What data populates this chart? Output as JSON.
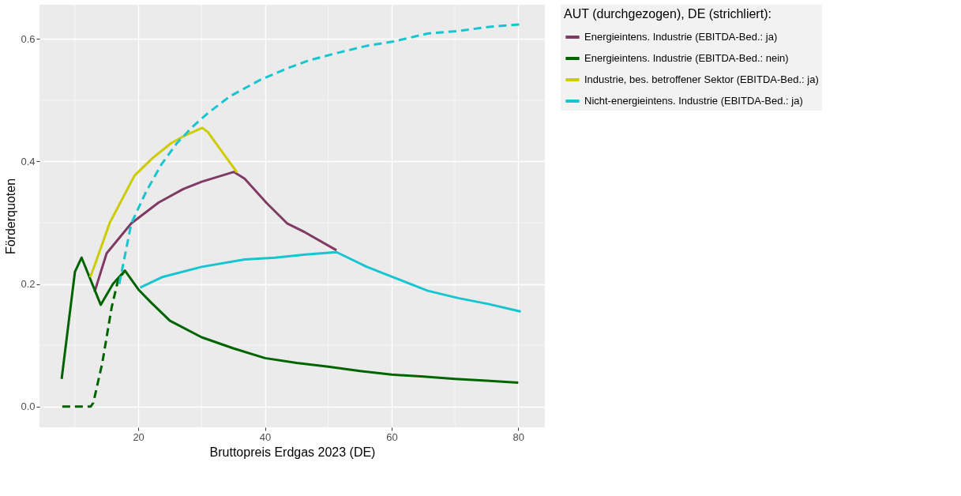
{
  "chart_data": {
    "type": "line",
    "xlabel": "Bruttopreis Erdgas 2023 (DE)",
    "ylabel": "Förderquoten",
    "legend_title": "AUT (durchgezogen), DE (strichliert):",
    "legend": "right",
    "grid": true,
    "marker": "none",
    "xlim": [
      4.4,
      84.2
    ],
    "ylim": [
      -0.034,
      0.656
    ],
    "xticks": [
      20,
      40,
      60,
      80
    ],
    "yticks": [
      {
        "value": 0,
        "label": "0.0"
      },
      0.2,
      0.4,
      0.6
    ],
    "series": [
      {
        "name": "Energieintens. Industrie (EBITDA-Bed.: ja)",
        "color": "#7f3b63",
        "line_style": "solid",
        "x": [
          13.1,
          15,
          18.9,
          23.2,
          27.1,
          30,
          35.1,
          36.8,
          40.2,
          43.5,
          46.4,
          51.3
        ],
        "values": [
          0.187,
          0.25,
          0.299,
          0.333,
          0.355,
          0.367,
          0.383,
          0.372,
          0.333,
          0.299,
          0.284,
          0.255
        ]
      },
      {
        "name": "Energieintens. Industrie (EBITDA-Bed.: nein)",
        "color": "#006400",
        "line_style": "solid",
        "x": [
          7.9,
          10,
          11.05,
          14.07,
          16,
          17.9,
          20.1,
          22,
          25,
          30,
          35,
          40,
          45,
          50,
          55,
          60,
          65,
          70,
          75,
          80
        ],
        "values": [
          0.045,
          0.22,
          0.243,
          0.166,
          0.2,
          0.222,
          0.19,
          0.17,
          0.14,
          0.113,
          0.095,
          0.079,
          0.071,
          0.065,
          0.058,
          0.052,
          0.049,
          0.045,
          0.042,
          0.039
        ]
      },
      {
        "name": "Industrie, bes. betroffener Sektor (EBITDA-Bed.: ja)",
        "color": "#cccc00",
        "line_style": "solid",
        "x": [
          12.4,
          13.1,
          15.5,
          19.4,
          22.3,
          25.2,
          27.1,
          30.1,
          31,
          35.6
        ],
        "values": [
          0.211,
          0.23,
          0.3,
          0.377,
          0.406,
          0.43,
          0.441,
          0.455,
          0.448,
          0.382
        ]
      },
      {
        "name": "Nicht-energieintens. Industrie (EBITDA-Bed.: ja)",
        "color": "#17c5d0",
        "line_style": "solid",
        "x": [
          20.3,
          23.7,
          30,
          36.8,
          41.6,
          46.4,
          51.3,
          56.1,
          60.3,
          65.7,
          70.5,
          75.4,
          80.4
        ],
        "values": [
          0.194,
          0.211,
          0.228,
          0.24,
          0.243,
          0.248,
          0.252,
          0.228,
          0.211,
          0.189,
          0.177,
          0.167,
          0.155
        ]
      },
      {
        "color": "#006400",
        "line_style": "dashed",
        "x": [
          8,
          12.5,
          12.9,
          14.3,
          15.8,
          16.8,
          17.9
        ],
        "values": [
          0,
          0,
          0.006,
          0.07,
          0.162,
          0.206,
          0.222
        ]
      },
      {
        "color": "#17c5d0",
        "line_style": "dashed",
        "x": [
          17,
          18.9,
          21.3,
          23.7,
          26.1,
          28.6,
          31,
          34.4,
          39.2,
          43.5,
          46.9,
          51.3,
          56.1,
          60.3,
          65.7,
          70.5,
          75.4,
          80.4
        ],
        "values": [
          0.2,
          0.299,
          0.352,
          0.396,
          0.43,
          0.457,
          0.479,
          0.506,
          0.533,
          0.552,
          0.565,
          0.577,
          0.589,
          0.596,
          0.609,
          0.613,
          0.62,
          0.624
        ]
      }
    ]
  }
}
